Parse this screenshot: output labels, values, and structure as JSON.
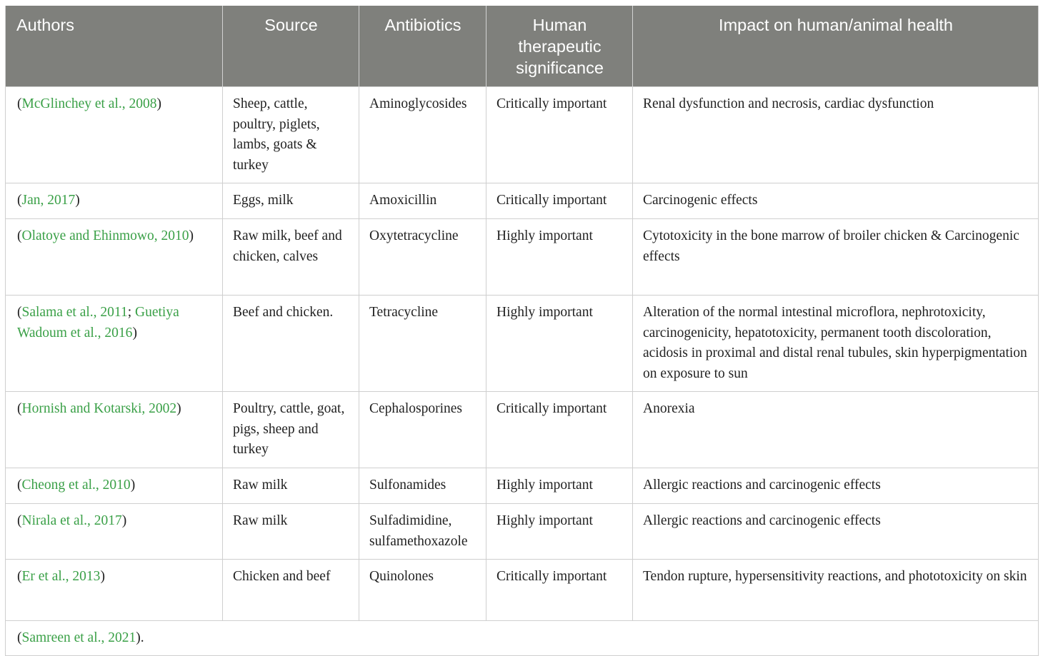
{
  "table": {
    "headers": [
      "Authors",
      "Source",
      "Antibiotics",
      "Human therapeutic significance",
      "Impact on human/animal health"
    ],
    "rows": [
      {
        "citations": [
          "McGlinchey et al., 2008"
        ],
        "source": "Sheep, cattle, poultry, piglets, lambs, goats & turkey",
        "antibiotics": "Aminoglycosides",
        "significance": "Critically important",
        "impact": "Renal dysfunction and necrosis, cardiac dysfunction"
      },
      {
        "citations": [
          "Jan, 2017"
        ],
        "source": "Eggs, milk",
        "antibiotics": "Amoxicillin",
        "significance": "Critically important",
        "impact": "Carcinogenic effects"
      },
      {
        "citations": [
          "Olatoye and Ehinmowo, 2010"
        ],
        "source": "Raw milk, beef and chicken, calves",
        "antibiotics": "Oxytetracycline",
        "significance": "Highly important",
        "impact": "Cytotoxicity in the bone marrow of broiler chicken & Carcinogenic effects"
      },
      {
        "citations": [
          "Salama et al., 2011",
          "Guetiya Wadoum et al., 2016"
        ],
        "source": "Beef and chicken.",
        "antibiotics": "Tetracycline",
        "significance": "Highly important",
        "impact": "Alteration of the normal intestinal microflora, nephrotoxicity, carcinogenicity, hepatotoxicity, permanent tooth discoloration, acidosis in proximal and distal renal tubules, skin hyperpigmentation on exposure to sun"
      },
      {
        "citations": [
          "Hornish and Kotarski, 2002"
        ],
        "source": "Poultry, cattle, goat, pigs, sheep and turkey",
        "antibiotics": "Cephalosporines",
        "significance": "Critically important",
        "impact": "Anorexia"
      },
      {
        "citations": [
          "Cheong et al., 2010"
        ],
        "source": "Raw milk",
        "antibiotics": "Sulfonamides",
        "significance": "Highly important",
        "impact": "Allergic reactions and carcinogenic effects"
      },
      {
        "citations": [
          "Nirala et al., 2017"
        ],
        "source": "Raw milk",
        "antibiotics": "Sulfadimidine, sulfamethoxazole",
        "significance": "Highly important",
        "impact": "Allergic reactions and carcinogenic effects"
      },
      {
        "citations": [
          "Er et al., 2013"
        ],
        "source": "Chicken and beef",
        "antibiotics": "Quinolones",
        "significance": "Critically important",
        "impact": "Tendon rupture, hypersensitivity reactions, and phototoxicity on skin"
      }
    ],
    "footnote": {
      "citation": "Samreen et al., 2021",
      "suffix": ")."
    }
  }
}
